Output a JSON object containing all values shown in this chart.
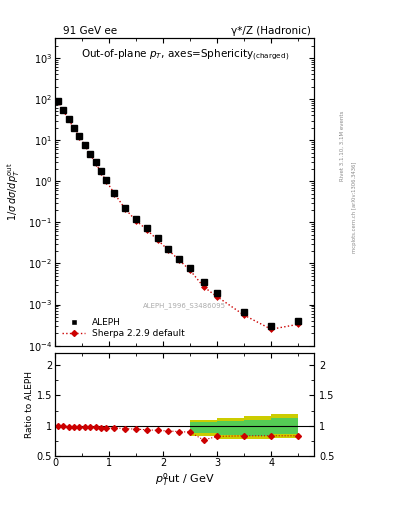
{
  "title_left": "91 GeV ee",
  "title_right": "γ*/Z (Hadronic)",
  "plot_title": "Out-of-plane $p_T$, axes=Sphericity$_{\\rm (charged)}$",
  "ylabel_main": "$1/\\sigma\\,d\\sigma/dp_T^{\\rm out}$",
  "ylabel_ratio": "Ratio to ALEPH",
  "xlabel": "$p_T^{\\rm o}$ut / GeV",
  "watermark": "ALEPH_1996_S3486095",
  "right_label1": "Rivet 3.1.10, 3.1M events",
  "right_label2": "mcplots.cern.ch [arXiv:1306.3436]",
  "data_x": [
    0.05,
    0.15,
    0.25,
    0.35,
    0.45,
    0.55,
    0.65,
    0.75,
    0.85,
    0.95,
    1.1,
    1.3,
    1.5,
    1.7,
    1.9,
    2.1,
    2.3,
    2.5,
    2.75,
    3.0,
    3.5,
    4.0,
    4.5
  ],
  "data_y": [
    90,
    54,
    33,
    20,
    12.5,
    7.8,
    4.7,
    2.9,
    1.75,
    1.05,
    0.52,
    0.225,
    0.118,
    0.071,
    0.041,
    0.023,
    0.013,
    0.0077,
    0.0036,
    0.0019,
    0.00067,
    0.0003,
    0.0004
  ],
  "data_yerr": [
    3,
    2,
    1.5,
    1.0,
    0.6,
    0.4,
    0.25,
    0.15,
    0.09,
    0.055,
    0.028,
    0.012,
    0.007,
    0.004,
    0.0025,
    0.0014,
    0.0008,
    0.0005,
    0.0002,
    0.0001,
    6e-05,
    3e-05,
    5e-05
  ],
  "mc_x": [
    0.05,
    0.15,
    0.25,
    0.35,
    0.45,
    0.55,
    0.65,
    0.75,
    0.85,
    0.95,
    1.1,
    1.3,
    1.5,
    1.7,
    1.9,
    2.1,
    2.3,
    2.5,
    2.75,
    3.0,
    3.5,
    4.0,
    4.5
  ],
  "mc_y": [
    90,
    53,
    32,
    19.5,
    12,
    7.5,
    4.5,
    2.8,
    1.65,
    1.0,
    0.5,
    0.21,
    0.11,
    0.066,
    0.037,
    0.021,
    0.012,
    0.0068,
    0.0027,
    0.00155,
    0.00055,
    0.00025,
    0.00033
  ],
  "ratio_x": [
    0.05,
    0.15,
    0.25,
    0.35,
    0.45,
    0.55,
    0.65,
    0.75,
    0.85,
    0.95,
    1.1,
    1.3,
    1.5,
    1.7,
    1.9,
    2.1,
    2.3,
    2.5,
    2.75,
    3.0,
    3.5,
    4.0,
    4.5
  ],
  "ratio_y": [
    1.0,
    0.99,
    0.98,
    0.97,
    0.97,
    0.97,
    0.97,
    0.97,
    0.96,
    0.96,
    0.96,
    0.95,
    0.94,
    0.93,
    0.92,
    0.91,
    0.9,
    0.89,
    0.76,
    0.82,
    0.83,
    0.83,
    0.83
  ],
  "ratio_yerr": [
    0.015,
    0.015,
    0.015,
    0.015,
    0.015,
    0.015,
    0.015,
    0.015,
    0.015,
    0.015,
    0.015,
    0.015,
    0.02,
    0.02,
    0.02,
    0.02,
    0.02,
    0.02,
    0.02,
    0.02,
    0.02,
    0.02,
    0.02
  ],
  "band_edges": [
    2.5,
    3.0,
    3.5,
    4.0,
    4.5
  ],
  "band_yellow_lo": [
    0.83,
    0.78,
    0.77,
    0.8,
    0.8
  ],
  "band_yellow_hi": [
    1.1,
    1.13,
    1.16,
    1.19,
    1.22
  ],
  "band_green_lo": [
    0.88,
    0.84,
    0.83,
    0.86,
    0.87
  ],
  "band_green_hi": [
    1.06,
    1.08,
    1.1,
    1.12,
    1.14
  ],
  "data_color": "#000000",
  "mc_color": "#cc0000",
  "green_color": "#55cc55",
  "yellow_color": "#cccc00",
  "ylim_main": [
    0.0001,
    3000
  ],
  "ylim_ratio": [
    0.5,
    2.2
  ],
  "xlim": [
    0,
    4.8
  ]
}
